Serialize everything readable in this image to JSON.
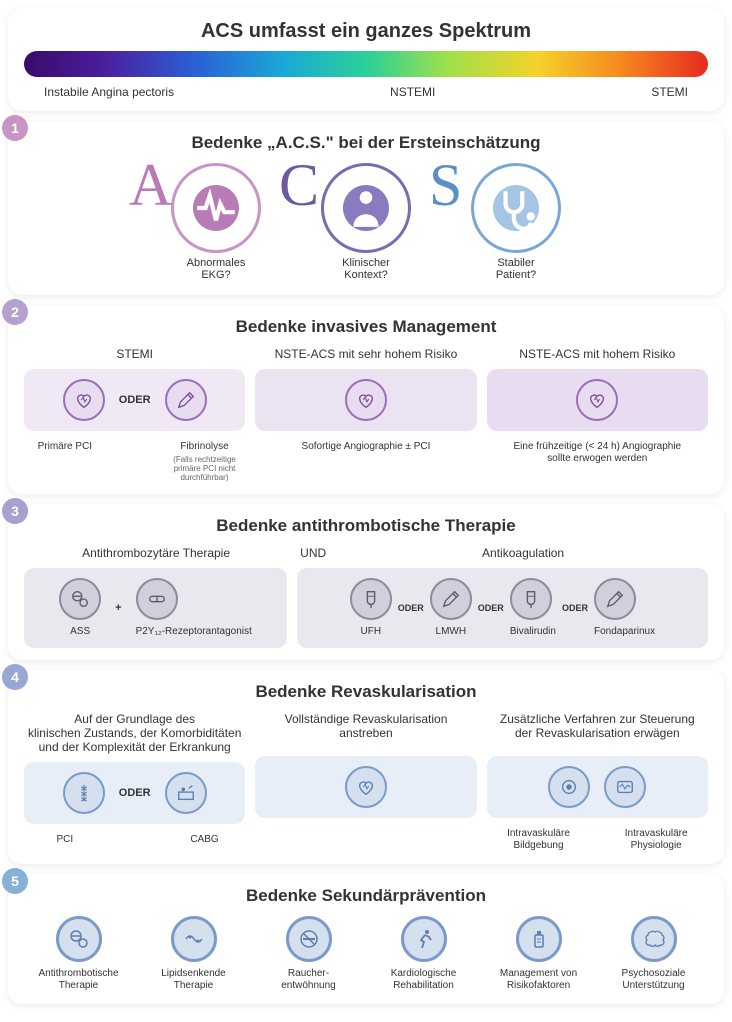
{
  "colors": {
    "purple": "#9b6fb8",
    "purple_dark": "#7a5095",
    "purple_light": "#e8dcf0",
    "purple_bg": "#f0e9f5",
    "blue": "#7a9ac9",
    "blue_dark": "#5a7fb0",
    "blue_light": "#d5e0ef",
    "blue_bg": "#e8eef7",
    "gray_bg": "#e8e8ef",
    "gray_border": "#8b8ba0",
    "badge1": "#c794c4",
    "badge2": "#b6a0cf",
    "badge3": "#a7a0d0",
    "badge4": "#96a8d3",
    "badge5": "#87b0d5"
  },
  "header": {
    "title": "ACS umfasst ein ganzes Spektrum",
    "gradient": "linear-gradient(90deg,#3a0a6b 0%,#4a1f9e 12%,#2b5fd6 25%,#1aa8d6 38%,#2bd09a 50%,#9fe04a 62%,#f5d22a 75%,#f58a1f 87%,#e62b1f 100%)",
    "labels": [
      "Instabile Angina pectoris",
      "NSTEMI",
      "STEMI"
    ]
  },
  "s1": {
    "badge": "1",
    "title": "Bedenke „A.C.S.\" bei der Ersteinschätzung",
    "items": [
      {
        "letter": "A",
        "letter_color": "#b87bb5",
        "ring": "#c794c4",
        "inner": "#b87bb5",
        "caption": "Abnormales\nEKG?",
        "icon": "ecg"
      },
      {
        "letter": "C",
        "letter_color": "#6b5a9e",
        "ring": "#7a6bb0",
        "inner": "#8a7bc0",
        "caption": "Klinischer\nKontext?",
        "icon": "person"
      },
      {
        "letter": "S",
        "letter_color": "#5a8fc9",
        "ring": "#7aa8d6",
        "inner": "#a5c5e5",
        "caption": "Stabiler\nPatient?",
        "icon": "stetho"
      }
    ]
  },
  "s2": {
    "badge": "2",
    "title": "Bedenke invasives Management",
    "boxes": [
      {
        "title": "STEMI",
        "bg": "#f0e9f5",
        "border": "#9b6fb8",
        "items": [
          {
            "icon": "heart",
            "cap": "Primäre PCI",
            "note": ""
          },
          {
            "sep": "ODER"
          },
          {
            "icon": "syringe",
            "cap": "Fibrinolyse",
            "note": "(Falls rechtzeitige primäre PCI nicht durchführbar)"
          }
        ]
      },
      {
        "title": "NSTE-ACS mit sehr hohem Risiko",
        "bg": "#ebe3f1",
        "border": "#9b6fb8",
        "items": [
          {
            "icon": "heart",
            "cap": "Sofortige Angiographie ± PCI"
          }
        ]
      },
      {
        "title": "NSTE-ACS mit hohem Risiko",
        "bg": "#e8dcf0",
        "border": "#9b6fb8",
        "items": [
          {
            "icon": "heart",
            "cap": "Eine frühzeitige (< 24 h) Angiographie\nsollte erwogen werden"
          }
        ]
      }
    ]
  },
  "s3": {
    "badge": "3",
    "title": "Bedenke antithrombotische Therapie",
    "left_label": "Antithrombozytäre Therapie",
    "mid_label": "UND",
    "right_label": "Antikoagulation",
    "left": {
      "bg": "#e8e8ef",
      "border": "#8b8ba0",
      "items": [
        {
          "icon": "pills",
          "cap": "ASS"
        },
        {
          "sep": "+"
        },
        {
          "icon": "capsule",
          "cap": "P2Y₁₂-Rezeptorantagonist"
        }
      ]
    },
    "right": {
      "bg": "#e8e8ef",
      "border": "#8b8ba0",
      "items": [
        {
          "icon": "ivbag",
          "cap": "UFH"
        },
        {
          "sep": "ODER"
        },
        {
          "icon": "syringe",
          "cap": "LMWH"
        },
        {
          "sep": "ODER"
        },
        {
          "icon": "ivbag",
          "cap": "Bivalirudin"
        },
        {
          "sep": "ODER"
        },
        {
          "icon": "syringe",
          "cap": "Fondaparinux"
        }
      ]
    }
  },
  "s4": {
    "badge": "4",
    "title": "Bedenke  Revaskularisation",
    "boxes": [
      {
        "title": "Auf der Grundlage des\nklinischen Zustands, der Komorbiditäten\nund der Komplexität der Erkrankung",
        "bg": "#e8eef7",
        "border": "#7a9ac9",
        "items": [
          {
            "icon": "stent",
            "cap": "PCI"
          },
          {
            "sep": "ODER"
          },
          {
            "icon": "surgery",
            "cap": "CABG"
          }
        ]
      },
      {
        "title": "Vollständige Revaskularisation\nanstreben",
        "bg": "#e8eef7",
        "border": "#7a9ac9",
        "items": [
          {
            "icon": "heart",
            "cap": ""
          }
        ]
      },
      {
        "title": "Zusätzliche Verfahren zur Steuerung\nder Revaskularisation erwägen",
        "bg": "#e8eef7",
        "border": "#7a9ac9",
        "items": [
          {
            "icon": "imaging",
            "cap": "Intravaskuläre Bildgebung"
          },
          {
            "icon": "wave",
            "cap": "Intravaskuläre Physiologie"
          }
        ]
      }
    ]
  },
  "s5": {
    "badge": "5",
    "title": "Bedenke Sekundärprävention",
    "color": "#7a9ac9",
    "items": [
      {
        "icon": "pills",
        "cap": "Antithrombotische\nTherapie"
      },
      {
        "icon": "vessel",
        "cap": "Lipidsenkende\nTherapie"
      },
      {
        "icon": "nosmoking",
        "cap": "Raucher-\nentwöhnung"
      },
      {
        "icon": "running",
        "cap": "Kardiologische\nRehabilitation"
      },
      {
        "icon": "bottle",
        "cap": "Management von\nRisikofaktoren"
      },
      {
        "icon": "brain",
        "cap": "Psychosoziale\nUnterstützung"
      }
    ]
  }
}
